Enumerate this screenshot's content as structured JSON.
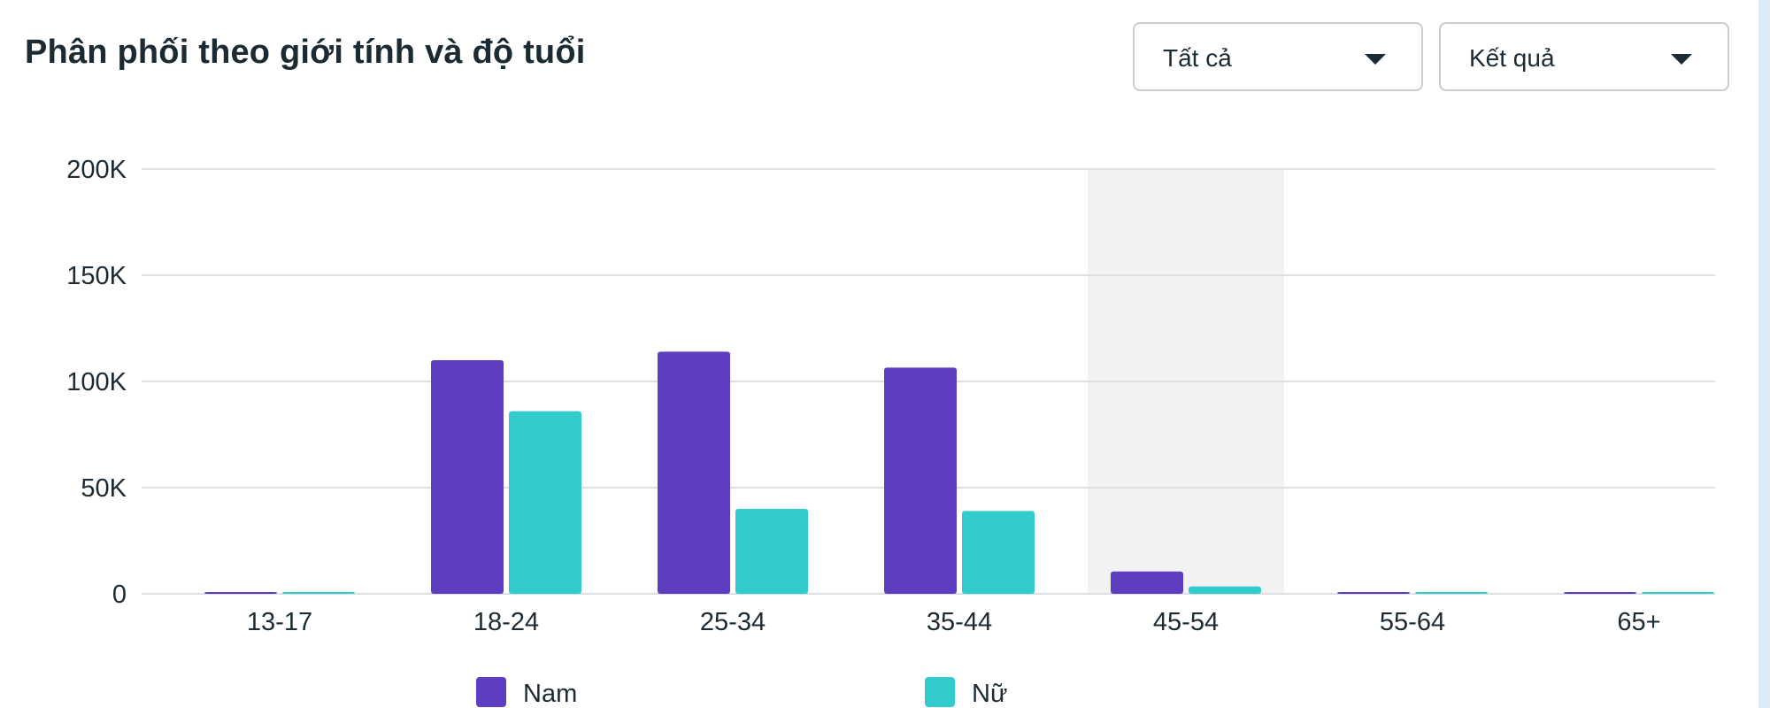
{
  "header": {
    "title": "Phân phối theo giới tính và độ tuổi"
  },
  "filters": [
    {
      "selected": "Tất cả"
    },
    {
      "selected": "Kết quả"
    }
  ],
  "colors": {
    "male": "#5e3dc1",
    "female": "#33cccc",
    "highlight": "#f2f2f2",
    "grid": "#dddfe2"
  },
  "chart_data": {
    "type": "bar",
    "categories": [
      "13-17",
      "18-24",
      "25-34",
      "35-44",
      "45-54",
      "55-64",
      "65+"
    ],
    "series": [
      {
        "name": "Nam",
        "values": [
          300,
          110000,
          114000,
          106500,
          10500,
          300,
          300
        ]
      },
      {
        "name": "Nữ",
        "values": [
          300,
          86000,
          40000,
          39000,
          3500,
          300,
          300
        ]
      }
    ],
    "ylim": [
      0,
      200000
    ],
    "yticks": [
      0,
      50000,
      100000,
      150000,
      200000
    ],
    "ytick_labels": [
      "0",
      "50K",
      "100K",
      "150K",
      "200K"
    ],
    "highlighted_category": "45-54",
    "grid": true,
    "legend_position": "bottom"
  }
}
